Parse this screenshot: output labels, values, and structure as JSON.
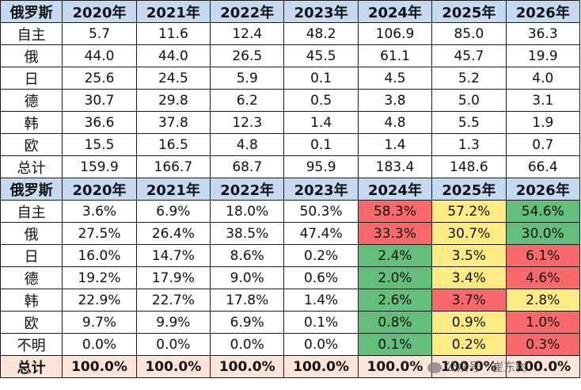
{
  "table1": {
    "header": [
      "俄罗斯",
      "2020年",
      "2021年",
      "2022年",
      "2023年",
      "2024年",
      "2025年",
      "2026年"
    ],
    "rows": [
      {
        "label": "自主",
        "values": [
          "5.7",
          "11.6",
          "12.4",
          "48.2",
          "106.9",
          "85.0",
          "36.3"
        ]
      },
      {
        "label": "俄",
        "values": [
          "44.0",
          "44.0",
          "26.5",
          "45.5",
          "61.1",
          "45.7",
          "19.9"
        ]
      },
      {
        "label": "日",
        "values": [
          "25.6",
          "24.5",
          "5.9",
          "0.1",
          "4.5",
          "5.2",
          "4.0"
        ]
      },
      {
        "label": "德",
        "values": [
          "30.7",
          "29.8",
          "6.2",
          "0.5",
          "3.8",
          "5.0",
          "3.1"
        ]
      },
      {
        "label": "韩",
        "values": [
          "36.6",
          "37.8",
          "12.3",
          "1.4",
          "4.8",
          "5.5",
          "1.9"
        ]
      },
      {
        "label": "欧",
        "values": [
          "15.5",
          "16.5",
          "4.8",
          "0.1",
          "1.4",
          "1.3",
          "0.7"
        ]
      },
      {
        "label": "总计",
        "values": [
          "159.9",
          "166.7",
          "68.7",
          "95.9",
          "183.4",
          "148.6",
          "66.4"
        ]
      }
    ]
  },
  "table2": {
    "header": [
      "俄罗斯",
      "2020年",
      "2021年",
      "2022年",
      "2023年",
      "2024年",
      "2025年",
      "2026年"
    ],
    "rows": [
      {
        "label": "自主",
        "values": [
          "3.6%",
          "6.9%",
          "18.0%",
          "50.3%",
          "58.3%",
          "57.2%",
          "54.6%"
        ],
        "colors": [
          "",
          "",
          "",
          "",
          "red",
          "yellow",
          "green"
        ]
      },
      {
        "label": "俄",
        "values": [
          "27.5%",
          "26.4%",
          "38.5%",
          "47.4%",
          "33.3%",
          "30.7%",
          "30.0%"
        ],
        "colors": [
          "",
          "",
          "",
          "",
          "red",
          "yellow",
          "green"
        ]
      },
      {
        "label": "日",
        "values": [
          "16.0%",
          "14.7%",
          "8.6%",
          "0.2%",
          "2.4%",
          "3.5%",
          "6.1%"
        ],
        "colors": [
          "",
          "",
          "",
          "",
          "green",
          "yellow",
          "red"
        ]
      },
      {
        "label": "德",
        "values": [
          "19.2%",
          "17.9%",
          "9.0%",
          "0.6%",
          "2.0%",
          "3.4%",
          "4.6%"
        ],
        "colors": [
          "",
          "",
          "",
          "",
          "green",
          "yellow",
          "red"
        ]
      },
      {
        "label": "韩",
        "values": [
          "22.9%",
          "22.7%",
          "17.8%",
          "1.4%",
          "2.6%",
          "3.7%",
          "2.8%"
        ],
        "colors": [
          "",
          "",
          "",
          "",
          "green",
          "red",
          "yellow"
        ]
      },
      {
        "label": "欧",
        "values": [
          "9.7%",
          "9.9%",
          "6.9%",
          "0.1%",
          "0.8%",
          "0.9%",
          "1.0%"
        ],
        "colors": [
          "",
          "",
          "",
          "",
          "green",
          "yellow",
          "red"
        ]
      },
      {
        "label": "不明",
        "values": [
          "0.0%",
          "0.0%",
          "0.0%",
          "0.0%",
          "0.1%",
          "0.2%",
          "0.3%"
        ],
        "colors": [
          "",
          "",
          "",
          "",
          "green",
          "yellow",
          "red"
        ]
      }
    ],
    "total": {
      "label": "总计",
      "values": [
        "100.0%",
        "100.0%",
        "100.0%",
        "100.0%",
        "100.0%",
        "100.0%",
        "100.0%"
      ]
    }
  },
  "colors": {
    "header_bg": "#c5d9f1",
    "total_bg": "#fce4d6",
    "red": "#f8696b",
    "yellow": "#ffeb84",
    "green": "#63be7b"
  },
  "watermark": "公众号 · 崔东树"
}
